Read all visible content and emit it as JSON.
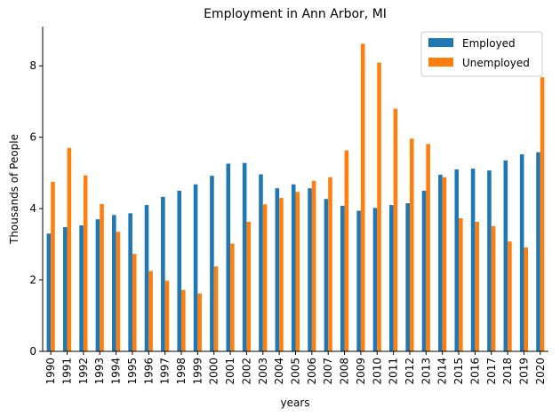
{
  "chart_data": {
    "type": "bar",
    "title": "Employment in Ann Arbor, MI",
    "xlabel": "years",
    "ylabel": "Thousands of People",
    "ylim": [
      0,
      9.1
    ],
    "yticks": [
      0,
      2,
      4,
      6,
      8
    ],
    "grid": false,
    "legend_position": "top-right",
    "categories": [
      "1990",
      "1991",
      "1992",
      "1993",
      "1994",
      "1995",
      "1996",
      "1997",
      "1998",
      "1999",
      "2000",
      "2001",
      "2002",
      "2003",
      "2004",
      "2005",
      "2006",
      "2007",
      "2008",
      "2009",
      "2010",
      "2011",
      "2012",
      "2013",
      "2014",
      "2015",
      "2016",
      "2017",
      "2018",
      "2019",
      "2020"
    ],
    "series": [
      {
        "name": "Employed",
        "color": "#1f77b4",
        "values": [
          3.3,
          3.48,
          3.53,
          3.7,
          3.82,
          3.87,
          4.1,
          4.33,
          4.5,
          4.68,
          4.92,
          5.26,
          5.28,
          4.96,
          4.57,
          4.68,
          4.57,
          4.27,
          4.08,
          3.94,
          4.02,
          4.1,
          4.15,
          4.5,
          4.95,
          5.1,
          5.12,
          5.07,
          5.35,
          5.52,
          5.58
        ]
      },
      {
        "name": "Unemployed",
        "color": "#ff7f0e",
        "values": [
          4.75,
          5.7,
          4.93,
          4.13,
          3.35,
          2.73,
          2.25,
          1.98,
          1.72,
          1.62,
          2.38,
          3.02,
          3.63,
          4.12,
          4.3,
          4.47,
          4.78,
          4.88,
          5.63,
          8.62,
          8.09,
          6.8,
          5.96,
          5.81,
          4.88,
          3.73,
          3.63,
          3.51,
          3.08,
          2.91,
          7.68
        ]
      }
    ]
  }
}
